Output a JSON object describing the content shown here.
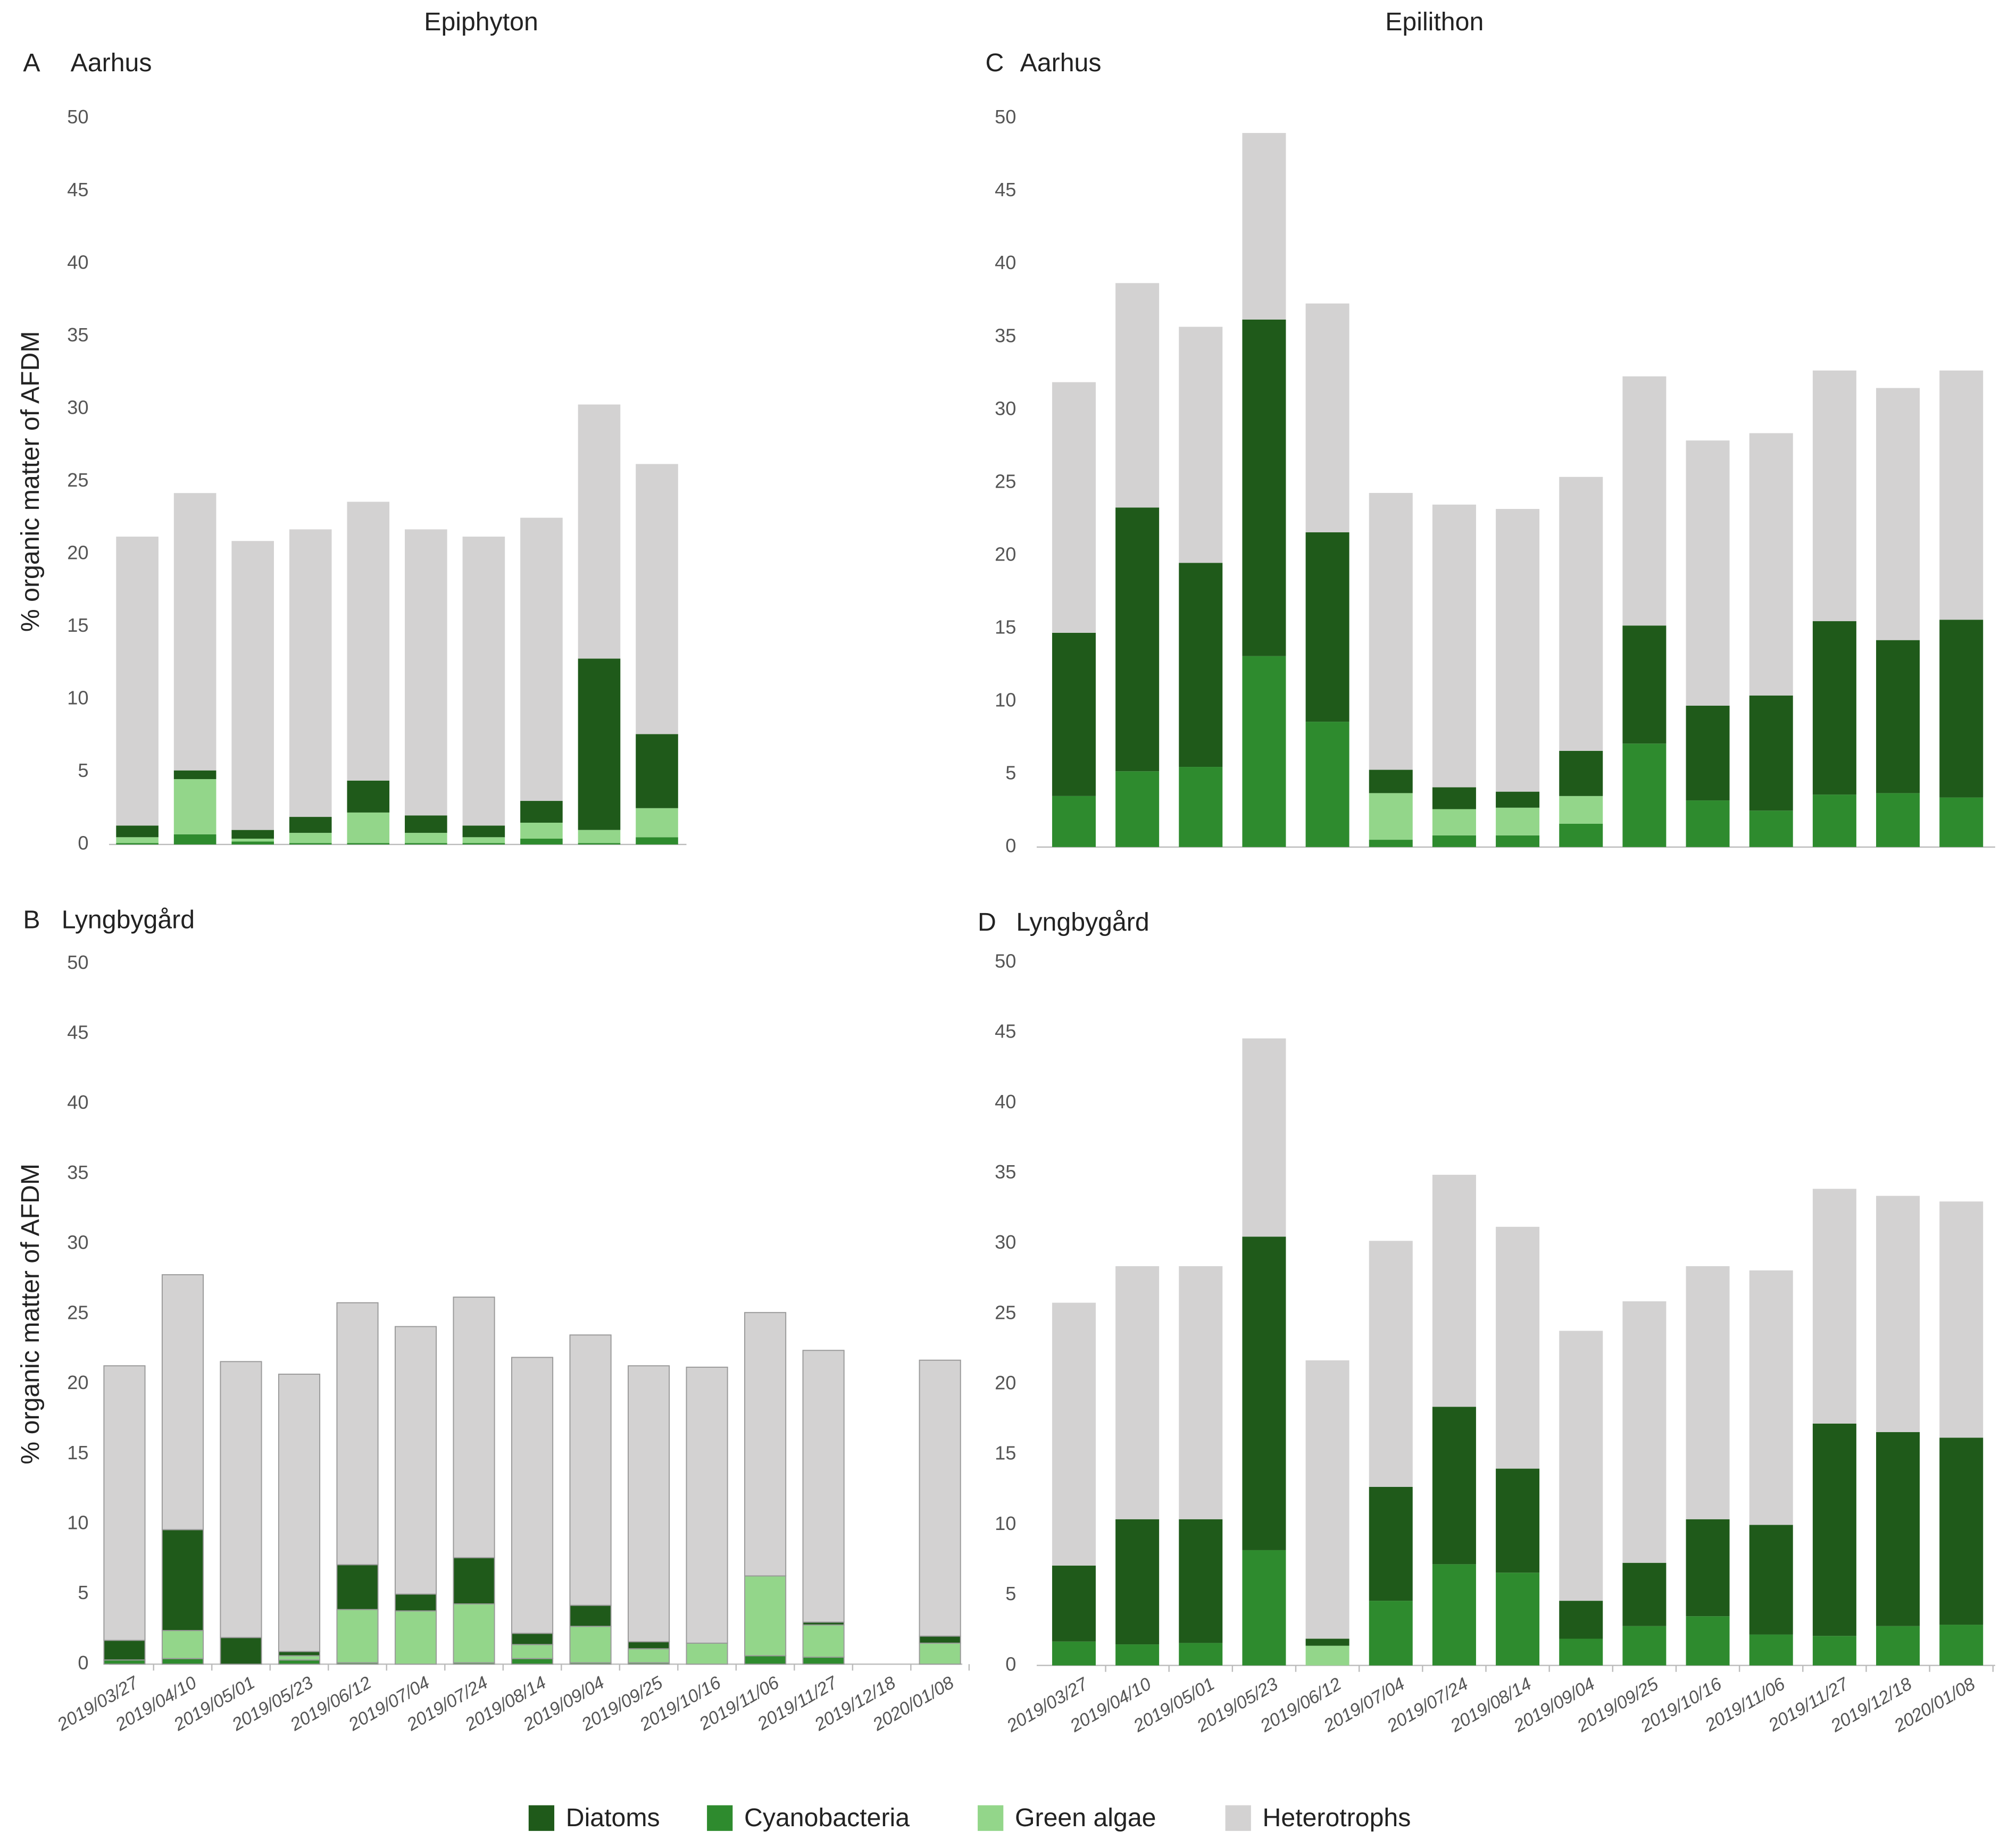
{
  "headers": [
    "Epiphyton",
    "Epilithon"
  ],
  "chart_data": [
    {
      "type": "bar",
      "stacked": true,
      "panel": "A",
      "title": "Aarhus",
      "ylabel": "% organic matter of AFDM",
      "ylim": [
        0,
        50
      ],
      "yticks": [
        0,
        5,
        10,
        15,
        20,
        25,
        30,
        35,
        40,
        45,
        50
      ],
      "series": [
        {
          "name": "Diatoms",
          "color": "#1f5a1a",
          "values": [
            0.8,
            0.6,
            0.6,
            1.1,
            2.2,
            1.2,
            0.8,
            1.5,
            11.8,
            5.1
          ]
        },
        {
          "name": "Cyanobacteria",
          "color": "#2e8b2e",
          "values": [
            0.1,
            0.7,
            0.2,
            0.1,
            0.1,
            0.1,
            0.1,
            0.4,
            0.1,
            0.5
          ]
        },
        {
          "name": "Green  algae",
          "color": "#93d68a",
          "values": [
            0.4,
            3.8,
            0.2,
            0.7,
            2.1,
            0.7,
            0.4,
            1.1,
            0.9,
            2.0
          ]
        },
        {
          "name": "Heterotrophs",
          "color": "#d3d2d2",
          "values": [
            19.9,
            19.1,
            19.9,
            19.8,
            19.2,
            19.7,
            19.9,
            19.5,
            17.5,
            18.6
          ]
        }
      ]
    },
    {
      "type": "bar",
      "stacked": true,
      "panel": "B",
      "title": "Lyngbygård",
      "ylabel": "% organic matter of AFDM",
      "ylim": [
        0,
        50
      ],
      "yticks": [
        0,
        5,
        10,
        15,
        20,
        25,
        30,
        35,
        40,
        45,
        50
      ],
      "categories": [
        "2019/03/27",
        "2019/04/10",
        "2019/05/01",
        "2019/05/23",
        "2019/06/12",
        "2019/07/04",
        "2019/07/24",
        "2019/08/14",
        "2019/09/04",
        "2019/09/25",
        "2019/10/16",
        "2019/11/06",
        "2019/11/27",
        "2019/12/18",
        "2020/01/08"
      ],
      "series": [
        {
          "name": "Diatoms",
          "color": "#1f5a1a",
          "values": [
            1.4,
            7.2,
            1.9,
            0.3,
            3.2,
            1.2,
            3.3,
            0.8,
            1.5,
            0.5,
            0,
            0,
            0.2,
            null,
            0.5
          ]
        },
        {
          "name": "Cyanobacteria",
          "color": "#2e8b2e",
          "values": [
            0.3,
            0.4,
            0,
            0.3,
            0.1,
            0,
            0.1,
            0.4,
            0.1,
            0.1,
            0,
            0.6,
            0.5,
            null,
            0
          ]
        },
        {
          "name": "Green  algae",
          "color": "#93d68a",
          "values": [
            0,
            2.0,
            0,
            0.3,
            3.8,
            3.8,
            4.2,
            1.0,
            2.6,
            1.0,
            1.5,
            5.7,
            2.3,
            null,
            1.5
          ]
        },
        {
          "name": "Heterotrophs",
          "color": "#d3d2d2",
          "values": [
            19.6,
            18.2,
            19.7,
            19.8,
            18.7,
            19.1,
            18.6,
            19.7,
            19.3,
            19.7,
            19.7,
            18.8,
            19.4,
            null,
            19.7
          ]
        }
      ]
    },
    {
      "type": "bar",
      "stacked": true,
      "panel": "C",
      "title": "Aarhus",
      "ylim": [
        0,
        50
      ],
      "yticks": [
        0,
        5,
        10,
        15,
        20,
        25,
        30,
        35,
        40,
        45,
        50
      ],
      "series": [
        {
          "name": "Diatoms",
          "color": "#1f5a1a",
          "values": [
            11.2,
            18.1,
            14.0,
            23.1,
            13.0,
            1.6,
            1.5,
            1.1,
            3.1,
            8.1,
            6.5,
            7.9,
            11.9,
            10.5,
            12.2
          ]
        },
        {
          "name": "Cyanobacteria",
          "color": "#2e8b2e",
          "values": [
            3.5,
            5.2,
            5.5,
            13.1,
            8.6,
            0.5,
            0.8,
            0.8,
            1.6,
            7.1,
            3.2,
            2.5,
            3.6,
            3.7,
            3.4
          ]
        },
        {
          "name": "Green  algae",
          "color": "#93d68a",
          "values": [
            0,
            0,
            0,
            0,
            0,
            3.2,
            1.8,
            1.9,
            1.9,
            0,
            0,
            0,
            0,
            0,
            0
          ]
        },
        {
          "name": "Heterotrophs",
          "color": "#d3d2d2",
          "values": [
            17.2,
            15.4,
            16.2,
            12.8,
            15.7,
            19.0,
            19.4,
            19.4,
            18.8,
            17.1,
            18.2,
            18.0,
            17.2,
            17.3,
            17.1
          ]
        }
      ]
    },
    {
      "type": "bar",
      "stacked": true,
      "panel": "D",
      "title": "Lyngbygård",
      "ylim": [
        0,
        50
      ],
      "yticks": [
        0,
        5,
        10,
        15,
        20,
        25,
        30,
        35,
        40,
        45,
        50
      ],
      "categories": [
        "2019/03/27",
        "2019/04/10",
        "2019/05/01",
        "2019/05/23",
        "2019/06/12",
        "2019/07/04",
        "2019/07/24",
        "2019/08/14",
        "2019/09/04",
        "2019/09/25",
        "2019/10/16",
        "2019/11/06",
        "2019/11/27",
        "2019/12/18",
        "2020/01/08"
      ],
      "series": [
        {
          "name": "Diatoms",
          "color": "#1f5a1a",
          "values": [
            5.4,
            8.9,
            8.8,
            22.3,
            0.5,
            8.1,
            11.2,
            7.4,
            2.7,
            4.5,
            6.9,
            7.8,
            15.1,
            13.8,
            13.3
          ]
        },
        {
          "name": "Cyanobacteria",
          "color": "#2e8b2e",
          "values": [
            1.7,
            1.5,
            1.6,
            8.2,
            0,
            4.6,
            7.2,
            6.6,
            1.9,
            2.8,
            3.5,
            2.2,
            2.1,
            2.8,
            2.9
          ]
        },
        {
          "name": "Green  algae",
          "color": "#93d68a",
          "values": [
            0,
            0,
            0,
            0,
            1.4,
            0,
            0,
            0,
            0,
            0,
            0,
            0,
            0,
            0,
            0
          ]
        },
        {
          "name": "Heterotrophs",
          "color": "#d3d2d2",
          "values": [
            18.7,
            18.0,
            18.0,
            14.1,
            19.8,
            17.5,
            16.5,
            17.2,
            19.2,
            18.6,
            18.0,
            18.1,
            16.7,
            16.8,
            16.8
          ]
        }
      ]
    }
  ]
}
